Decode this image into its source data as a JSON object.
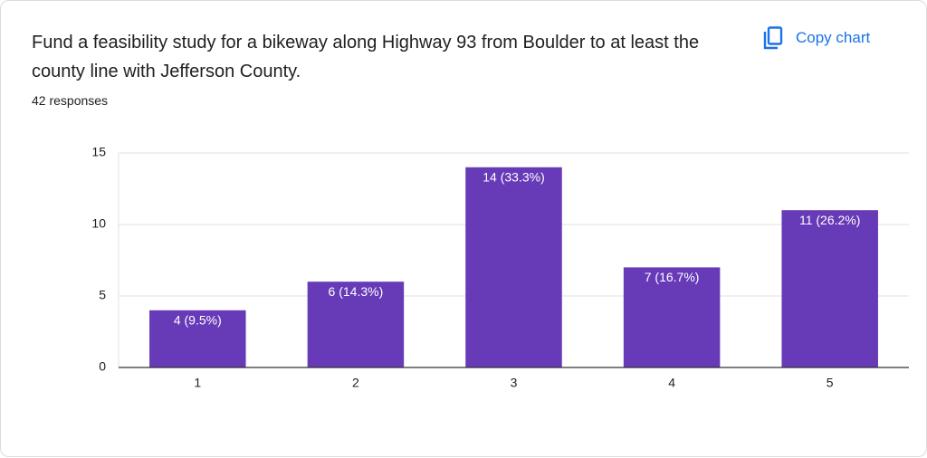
{
  "chart_data": {
    "type": "bar",
    "title": "Fund a feasibility study for a bikeway along Highway 93 from Boulder to at least the county line with Jefferson County.",
    "subtitle": "42 responses",
    "button": "Copy chart",
    "categories": [
      "1",
      "2",
      "3",
      "4",
      "5"
    ],
    "values": [
      4,
      6,
      14,
      7,
      11
    ],
    "value_labels": [
      "4 (9.5%)",
      "6 (14.3%)",
      "14 (33.3%)",
      "7 (16.7%)",
      "11 (26.2%)"
    ],
    "color": "#673ab7",
    "ylim": [
      0,
      15
    ],
    "yticks": [
      0,
      5,
      10,
      15
    ],
    "grid": true
  }
}
